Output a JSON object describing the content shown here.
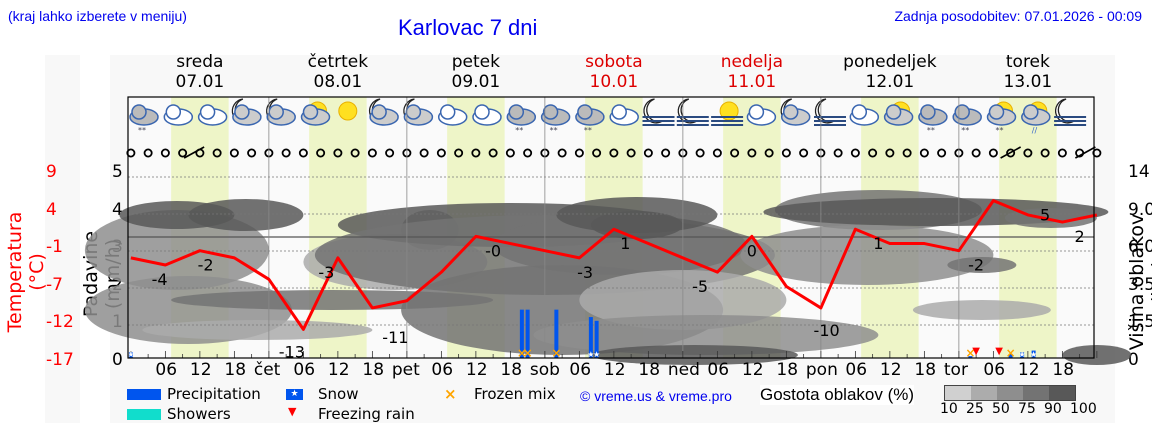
{
  "header": {
    "note": "(kraj lahko izberete v meniju)",
    "title": "Karlovac 7 dni",
    "updated": "Zadnja posodobitev: 07.01.2026 - 00:09"
  },
  "days": [
    {
      "name": "sreda",
      "date": "07.01",
      "weekend": false
    },
    {
      "name": "četrtek",
      "date": "08.01",
      "weekend": false
    },
    {
      "name": "petek",
      "date": "09.01",
      "weekend": false
    },
    {
      "name": "sobota",
      "date": "10.01",
      "weekend": true
    },
    {
      "name": "nedelja",
      "date": "11.01",
      "weekend": true
    },
    {
      "name": "ponedeljek",
      "date": "12.01",
      "weekend": false
    },
    {
      "name": "torek",
      "date": "13.01",
      "weekend": false
    }
  ],
  "axes": {
    "temp_label": "Temperatura (°C)",
    "temp_ticks": [
      "9",
      "4",
      "-1",
      "-7",
      "-12",
      "-17"
    ],
    "prec_label": "Padavine (mm/h)",
    "prec_ticks": [
      "5",
      "4",
      "3",
      "2",
      "1",
      "0"
    ],
    "cloud_label": "Višina oblakov (km)",
    "cloud_ticks": [
      "14",
      "9.0",
      "6.0",
      "3.5",
      "1.5",
      "0"
    ],
    "x_ticks": [
      "06",
      "12",
      "18",
      "čet",
      "06",
      "12",
      "18",
      "pet",
      "06",
      "12",
      "18",
      "sob",
      "06",
      "12",
      "18",
      "ned",
      "06",
      "12",
      "18",
      "pon",
      "06",
      "12",
      "18",
      "tor",
      "06",
      "12",
      "18"
    ]
  },
  "legend": {
    "precipitation": "Precipitation",
    "showers": "Showers",
    "snow": "Snow",
    "freezing_rain": "Freezing rain",
    "frozen_mix": "Frozen mix",
    "copyright": "© vreme.us & vreme.pro",
    "cloud_density": "Gostota oblakov (%)",
    "cloud_scale": [
      "10",
      "25",
      "50",
      "75",
      "90",
      "100"
    ]
  },
  "colors": {
    "temperature": "#ff0000",
    "precipitation": "#0055ee",
    "showers": "#11ddcc",
    "frozen_mix": "#ffa500",
    "daytime_band": "#eef5c8",
    "weekend_day": "#dd0000",
    "link": "#0000ee"
  },
  "weather_icons": [
    "snow-cloud",
    "cloud",
    "cloud",
    "moon-cloud",
    "moon-cloud",
    "sun-cloud",
    "sun",
    "moon-cloud",
    "moon-cloud",
    "cloud",
    "cloud",
    "snow-cloud",
    "snow-cloud",
    "snow-cloud",
    "cloud",
    "moon-fog",
    "moon-fog",
    "sun-fog",
    "cloud",
    "moon-cloud",
    "moon-fog",
    "cloud",
    "sun-cloud",
    "snow-cloud",
    "snow-cloud",
    "sun-snow-cloud",
    "sun-rain-cloud",
    "moon-fog"
  ],
  "chart_data": {
    "type": "line",
    "title": "Karlovac 7 dni",
    "xlabel": "",
    "ylabel": "Temperatura (°C)",
    "ylim_temp": [
      -17,
      9
    ],
    "ylim_precip": [
      0,
      5
    ],
    "cloud_height_km_ticks": [
      0,
      1.5,
      3.5,
      6.0,
      9.0,
      14
    ],
    "x_hours": [
      0,
      6,
      12,
      18,
      24,
      30,
      36,
      42,
      48,
      54,
      60,
      66,
      72,
      78,
      84,
      90,
      96,
      102,
      108,
      114,
      120,
      126,
      132,
      138,
      144,
      150,
      156,
      162,
      168
    ],
    "series": [
      {
        "name": "Temperatura",
        "values": [
          -3,
          -4,
          -2,
          -3,
          -6,
          -13,
          -3,
          -10,
          -9,
          -5,
          0,
          -1,
          -2,
          -3,
          1,
          -1,
          -3,
          -5,
          0,
          -7,
          -10,
          1,
          -1,
          -1,
          -2,
          5,
          3,
          2,
          3
        ]
      }
    ],
    "temperature_labels": [
      {
        "hour": 5,
        "value": -4
      },
      {
        "hour": 13,
        "value": -2
      },
      {
        "hour": 28,
        "value": -13
      },
      {
        "hour": 34,
        "value": -3
      },
      {
        "hour": 46,
        "value": -11
      },
      {
        "hour": 63,
        "value": 0
      },
      {
        "hour": 79,
        "value": -3
      },
      {
        "hour": 86,
        "value": 1
      },
      {
        "hour": 99,
        "value": -5
      },
      {
        "hour": 108,
        "value": 0
      },
      {
        "hour": 121,
        "value": -10
      },
      {
        "hour": 130,
        "value": 1
      },
      {
        "hour": 147,
        "value": -2
      },
      {
        "hour": 159,
        "value": 5
      },
      {
        "hour": 165,
        "value": 2
      }
    ],
    "precipitation_events": [
      {
        "hour": 0,
        "mm": 0.15,
        "type": "snow"
      },
      {
        "hour": 68,
        "mm": 1.3,
        "type": "frozen_mix"
      },
      {
        "hour": 69,
        "mm": 1.3,
        "type": "frozen_mix"
      },
      {
        "hour": 74,
        "mm": 1.3,
        "type": "frozen_mix"
      },
      {
        "hour": 80,
        "mm": 1.1,
        "type": "snow"
      },
      {
        "hour": 81,
        "mm": 1.0,
        "type": "snow"
      },
      {
        "hour": 146,
        "mm": 0.05,
        "type": "frozen_mix"
      },
      {
        "hour": 147,
        "mm": 0.05,
        "type": "freezing_rain"
      },
      {
        "hour": 151,
        "mm": 0.05,
        "type": "freezing_rain"
      },
      {
        "hour": 153,
        "mm": 0.1,
        "type": "frozen_mix"
      },
      {
        "hour": 155,
        "mm": 0.15,
        "type": "snow"
      },
      {
        "hour": 157,
        "mm": 0.2,
        "type": "snow"
      }
    ],
    "grid": true,
    "legend_position": "bottom"
  }
}
